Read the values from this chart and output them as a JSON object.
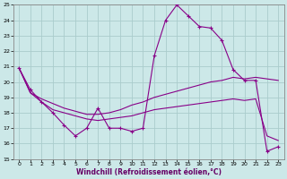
{
  "xlabel": "Windchill (Refroidissement éolien,°C)",
  "bg_color": "#cce8e8",
  "grid_color": "#aacccc",
  "line_color": "#880088",
  "xlim": [
    -0.5,
    23.5
  ],
  "ylim": [
    15,
    25
  ],
  "yticks": [
    15,
    16,
    17,
    18,
    19,
    20,
    21,
    22,
    23,
    24,
    25
  ],
  "xticks": [
    0,
    1,
    2,
    3,
    4,
    5,
    6,
    7,
    8,
    9,
    10,
    11,
    12,
    13,
    14,
    15,
    16,
    17,
    18,
    19,
    20,
    21,
    22,
    23
  ],
  "series1_x": [
    0,
    1,
    2,
    3,
    4,
    5,
    6,
    7,
    8,
    9,
    10,
    11,
    12,
    13,
    14,
    15,
    16,
    17,
    18,
    19,
    20,
    21,
    22,
    23
  ],
  "series1_y": [
    20.9,
    19.5,
    18.7,
    18.0,
    17.2,
    16.5,
    17.0,
    18.3,
    17.0,
    17.0,
    16.8,
    17.0,
    21.7,
    24.0,
    25.0,
    24.3,
    23.6,
    23.5,
    22.7,
    20.8,
    20.1,
    20.1,
    15.5,
    15.8
  ],
  "series2_x": [
    0,
    1,
    2,
    3,
    4,
    5,
    6,
    7,
    8,
    9,
    10,
    11,
    12,
    13,
    14,
    15,
    16,
    17,
    18,
    19,
    20,
    21,
    22,
    23
  ],
  "series2_y": [
    20.9,
    19.3,
    18.9,
    18.6,
    18.3,
    18.1,
    17.9,
    17.9,
    18.0,
    18.2,
    18.5,
    18.7,
    19.0,
    19.2,
    19.4,
    19.6,
    19.8,
    20.0,
    20.1,
    20.3,
    20.2,
    20.3,
    20.2,
    20.1
  ],
  "series3_x": [
    0,
    1,
    2,
    3,
    4,
    5,
    6,
    7,
    8,
    9,
    10,
    11,
    12,
    13,
    14,
    15,
    16,
    17,
    18,
    19,
    20,
    21,
    22,
    23
  ],
  "series3_y": [
    20.9,
    19.3,
    18.7,
    18.2,
    18.0,
    17.8,
    17.6,
    17.5,
    17.6,
    17.7,
    17.8,
    18.0,
    18.2,
    18.3,
    18.4,
    18.5,
    18.6,
    18.7,
    18.8,
    18.9,
    18.8,
    18.9,
    16.5,
    16.2
  ]
}
